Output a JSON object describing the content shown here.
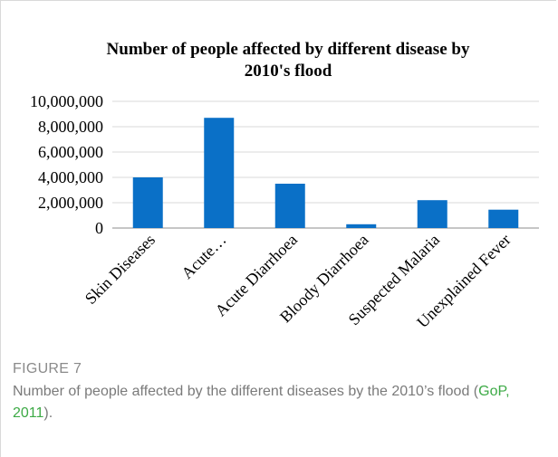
{
  "figure": {
    "label": "FIGURE 7",
    "caption_before": "Number of people affected by the different diseases by the 2010’s flood (",
    "caption_link": "GoP, 2011",
    "caption_after": ")."
  },
  "colors": {
    "bar": "#0a70c7",
    "axis": "#8c8c8c",
    "grid": "#d9d9d9",
    "link": "#3daa46"
  },
  "chart_data": {
    "type": "bar",
    "title_lines": [
      "Number of people affected by different disease by",
      "2010's flood"
    ],
    "categories": [
      "Skin Diseases",
      "Acute…",
      "Acute Diarrhoea",
      "Bloody Diarrhoea",
      "Suspected Malaria",
      "Unexplained Fever"
    ],
    "values": [
      4000000,
      8700000,
      3500000,
      300000,
      2200000,
      1450000
    ],
    "ylim": [
      0,
      10000000
    ],
    "yticks": [
      0,
      2000000,
      4000000,
      6000000,
      8000000,
      10000000
    ],
    "ytick_labels": [
      "0",
      "2,000,000",
      "4,000,000",
      "6,000,000",
      "8,000,000",
      "10,000,000"
    ],
    "xlabel": "",
    "ylabel": "",
    "grid": true
  }
}
